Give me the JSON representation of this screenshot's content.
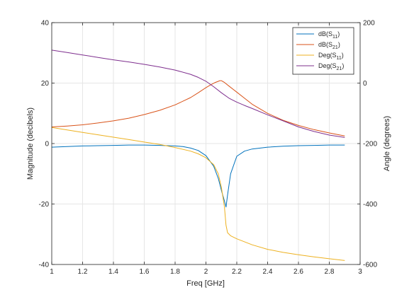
{
  "chart_data": {
    "type": "line",
    "title": "",
    "xlabel": "Freq [GHz]",
    "ylabel_left": "Magnitude (decibels)",
    "ylabel_right": "Angle (degrees)",
    "xlim": [
      1,
      3
    ],
    "ylim_left": [
      -40,
      40
    ],
    "ylim_right": [
      -600,
      200
    ],
    "xticks": [
      "1",
      "1.2",
      "1.4",
      "1.6",
      "1.8",
      "2",
      "2.2",
      "2.4",
      "2.6",
      "2.8",
      "3"
    ],
    "yticks_left": [
      "-40",
      "-20",
      "0",
      "20",
      "40"
    ],
    "yticks_right": [
      "-600",
      "-400",
      "-200",
      "0",
      "200"
    ],
    "grid": true,
    "legend_position": "top-right",
    "colors": {
      "s11_db": "#0072bd",
      "s21_db": "#d95319",
      "s11_deg": "#edb120",
      "s21_deg": "#7e2f8e"
    },
    "series": [
      {
        "key": "s11_db",
        "name": "dB(S11)",
        "axis": "left",
        "x": [
          1.0,
          1.1,
          1.2,
          1.3,
          1.4,
          1.5,
          1.6,
          1.7,
          1.8,
          1.85,
          1.9,
          1.95,
          2.0,
          2.05,
          2.08,
          2.1,
          2.12,
          2.13,
          2.14,
          2.16,
          2.2,
          2.25,
          2.3,
          2.4,
          2.5,
          2.6,
          2.7,
          2.8,
          2.9
        ],
        "y": [
          -1.2,
          -1.0,
          -0.8,
          -0.7,
          -0.6,
          -0.5,
          -0.5,
          -0.6,
          -0.8,
          -1.0,
          -1.5,
          -2.3,
          -4.0,
          -7.5,
          -11.5,
          -15.5,
          -19.0,
          -21.0,
          -17.0,
          -10.0,
          -4.2,
          -2.5,
          -1.8,
          -1.2,
          -0.9,
          -0.7,
          -0.6,
          -0.5,
          -0.5
        ]
      },
      {
        "key": "s21_db",
        "name": "dB(S21)",
        "axis": "left",
        "x": [
          1.0,
          1.1,
          1.2,
          1.3,
          1.4,
          1.5,
          1.6,
          1.7,
          1.8,
          1.9,
          1.95,
          2.0,
          2.03,
          2.06,
          2.09,
          2.1,
          2.12,
          2.15,
          2.2,
          2.25,
          2.3,
          2.4,
          2.5,
          2.6,
          2.7,
          2.8,
          2.9
        ],
        "y": [
          5.5,
          5.8,
          6.2,
          6.8,
          7.5,
          8.4,
          9.6,
          11.0,
          12.8,
          15.2,
          16.8,
          18.5,
          19.4,
          20.2,
          20.8,
          20.8,
          20.2,
          19.0,
          17.0,
          15.0,
          13.0,
          10.0,
          7.7,
          6.0,
          4.6,
          3.5,
          2.5
        ]
      },
      {
        "key": "s11_deg",
        "name": "Deg(S11)",
        "axis": "right",
        "x": [
          1.0,
          1.1,
          1.2,
          1.3,
          1.4,
          1.5,
          1.6,
          1.7,
          1.8,
          1.9,
          1.95,
          2.0,
          2.05,
          2.08,
          2.1,
          2.12,
          2.13,
          2.14,
          2.16,
          2.2,
          2.3,
          2.4,
          2.5,
          2.6,
          2.7,
          2.8,
          2.9
        ],
        "y": [
          -147,
          -155,
          -163,
          -171,
          -179,
          -187,
          -195,
          -203,
          -213,
          -225,
          -234,
          -247,
          -270,
          -300,
          -345,
          -410,
          -470,
          -495,
          -505,
          -515,
          -535,
          -550,
          -560,
          -568,
          -575,
          -581,
          -587
        ]
      },
      {
        "key": "s21_deg",
        "name": "Deg(S21)",
        "axis": "right",
        "x": [
          1.0,
          1.1,
          1.2,
          1.3,
          1.4,
          1.5,
          1.6,
          1.7,
          1.8,
          1.9,
          1.95,
          2.0,
          2.05,
          2.1,
          2.15,
          2.2,
          2.25,
          2.3,
          2.4,
          2.5,
          2.6,
          2.7,
          2.8,
          2.9
        ],
        "y": [
          109,
          101,
          93,
          85,
          77,
          70,
          62,
          53,
          43,
          29,
          19,
          6,
          -12,
          -32,
          -50,
          -63,
          -74,
          -84,
          -105,
          -125,
          -145,
          -160,
          -172,
          -180
        ]
      }
    ]
  }
}
